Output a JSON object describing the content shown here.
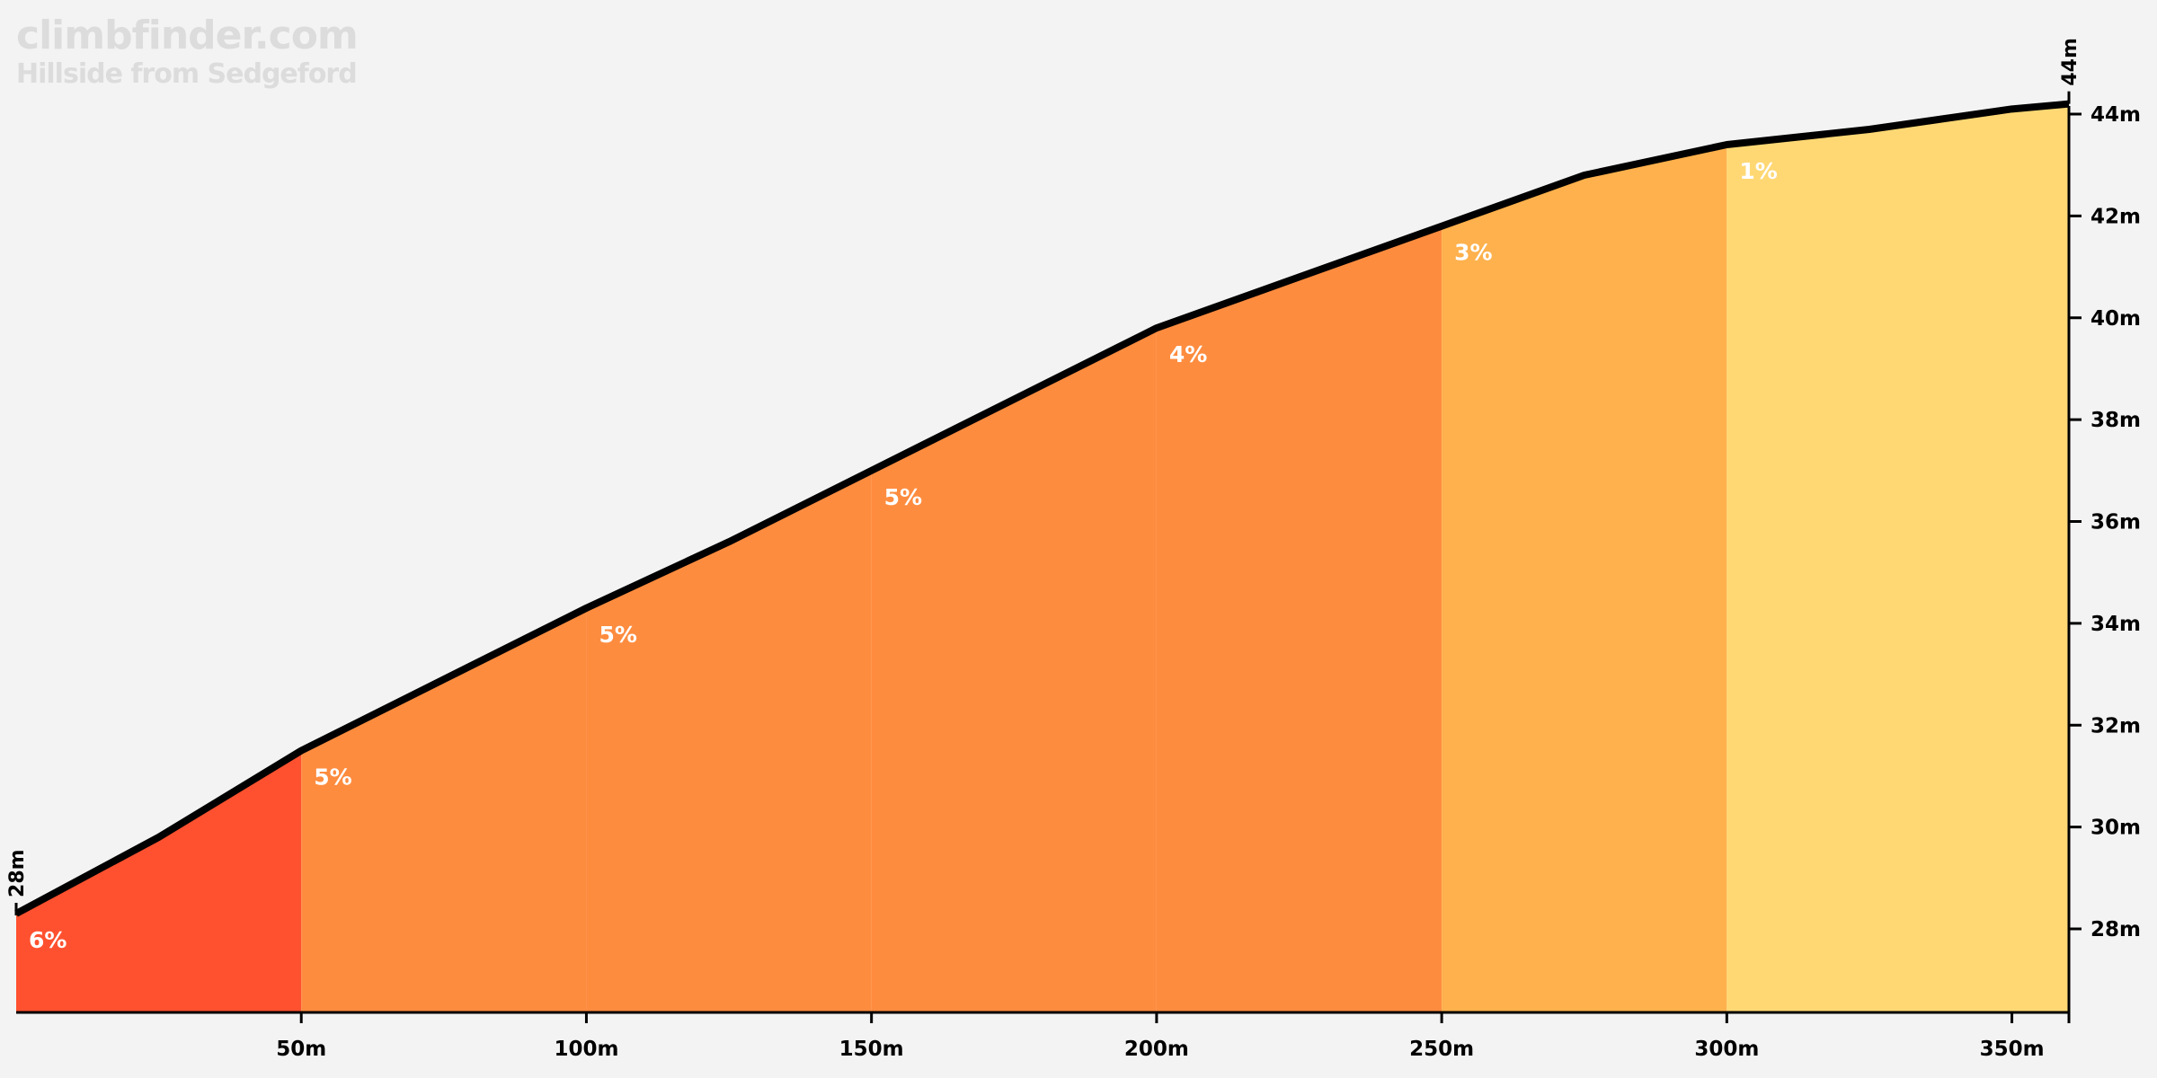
{
  "brand": {
    "site": "climbfinder.com",
    "climb_name": "Hillside from Sedgeford"
  },
  "chart_data": {
    "type": "area",
    "title": "Hillside from Sedgeford",
    "xlabel": "",
    "ylabel": "",
    "x_unit": "m",
    "y_unit": "m",
    "xlim": [
      0,
      360
    ],
    "ylim": [
      26.4,
      44.8
    ],
    "x_ticks": [
      50,
      100,
      150,
      200,
      250,
      300,
      350
    ],
    "y_ticks": [
      28,
      30,
      32,
      34,
      36,
      38,
      40,
      42,
      44
    ],
    "profile": [
      {
        "x": 0,
        "y": 28.3
      },
      {
        "x": 25,
        "y": 29.8
      },
      {
        "x": 50,
        "y": 31.5
      },
      {
        "x": 75,
        "y": 32.9
      },
      {
        "x": 100,
        "y": 34.3
      },
      {
        "x": 125,
        "y": 35.6
      },
      {
        "x": 150,
        "y": 37.0
      },
      {
        "x": 175,
        "y": 38.4
      },
      {
        "x": 200,
        "y": 39.8
      },
      {
        "x": 225,
        "y": 40.8
      },
      {
        "x": 250,
        "y": 41.8
      },
      {
        "x": 275,
        "y": 42.8
      },
      {
        "x": 300,
        "y": 43.4
      },
      {
        "x": 325,
        "y": 43.7
      },
      {
        "x": 350,
        "y": 44.1
      },
      {
        "x": 360,
        "y": 44.2
      }
    ],
    "segments": [
      {
        "start": 0,
        "end": 50,
        "gradient": "6%",
        "label_x": 0,
        "label_y": 28.3,
        "color": "#ff512f"
      },
      {
        "start": 50,
        "end": 100,
        "gradient": "5%",
        "label_x": 50,
        "label_y": 31.5,
        "color": "#fe8c3f"
      },
      {
        "start": 100,
        "end": 150,
        "gradient": "5%",
        "label_x": 100,
        "label_y": 34.3,
        "color": "#fe8c3f"
      },
      {
        "start": 150,
        "end": 200,
        "gradient": "5%",
        "label_x": 150,
        "label_y": 37.0,
        "color": "#fe8c3f"
      },
      {
        "start": 200,
        "end": 250,
        "gradient": "4%",
        "label_x": 200,
        "label_y": 39.8,
        "color": "#fe8c3f"
      },
      {
        "start": 250,
        "end": 300,
        "gradient": "3%",
        "label_x": 250,
        "label_y": 41.8,
        "color": "#feb14c"
      },
      {
        "start": 300,
        "end": 360,
        "gradient": "1%",
        "label_x": 300,
        "label_y": 43.4,
        "color": "#ffd874"
      }
    ],
    "start_elevation_label": "28m",
    "end_elevation_label": "44m",
    "line_color": "#000000",
    "background_color": "#f3f3f3",
    "grid": false
  }
}
